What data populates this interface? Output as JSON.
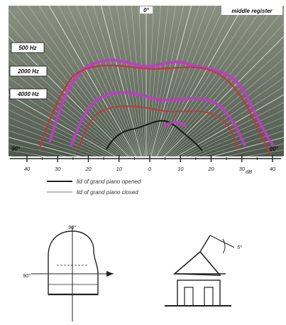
{
  "polar_plot": {
    "region_label": "middle register",
    "top_label": "0°",
    "bottom_left_label": "90°",
    "bottom_right_label": "90°",
    "frequency_labels": [
      "500 Hz",
      "2000 Hz",
      "4000 Hz"
    ],
    "scale_ticks": [
      "40",
      "30",
      "20",
      "10",
      "0",
      "10",
      "20",
      "30",
      "40"
    ],
    "scale_unit": "dB",
    "contour_colors": {
      "magenta": "#c23ac8",
      "red": "#c8323a",
      "dark": "#1a1a1a"
    }
  },
  "legend": {
    "items": [
      {
        "label": "lid of grand piano opened",
        "style": "solid"
      },
      {
        "label": "lid of grand piano closed",
        "style": "thin"
      }
    ]
  },
  "sketches": {
    "top_view": {
      "top_label": "90°",
      "left_label": "90°"
    },
    "side_view": {
      "angle_label": "5°"
    }
  }
}
